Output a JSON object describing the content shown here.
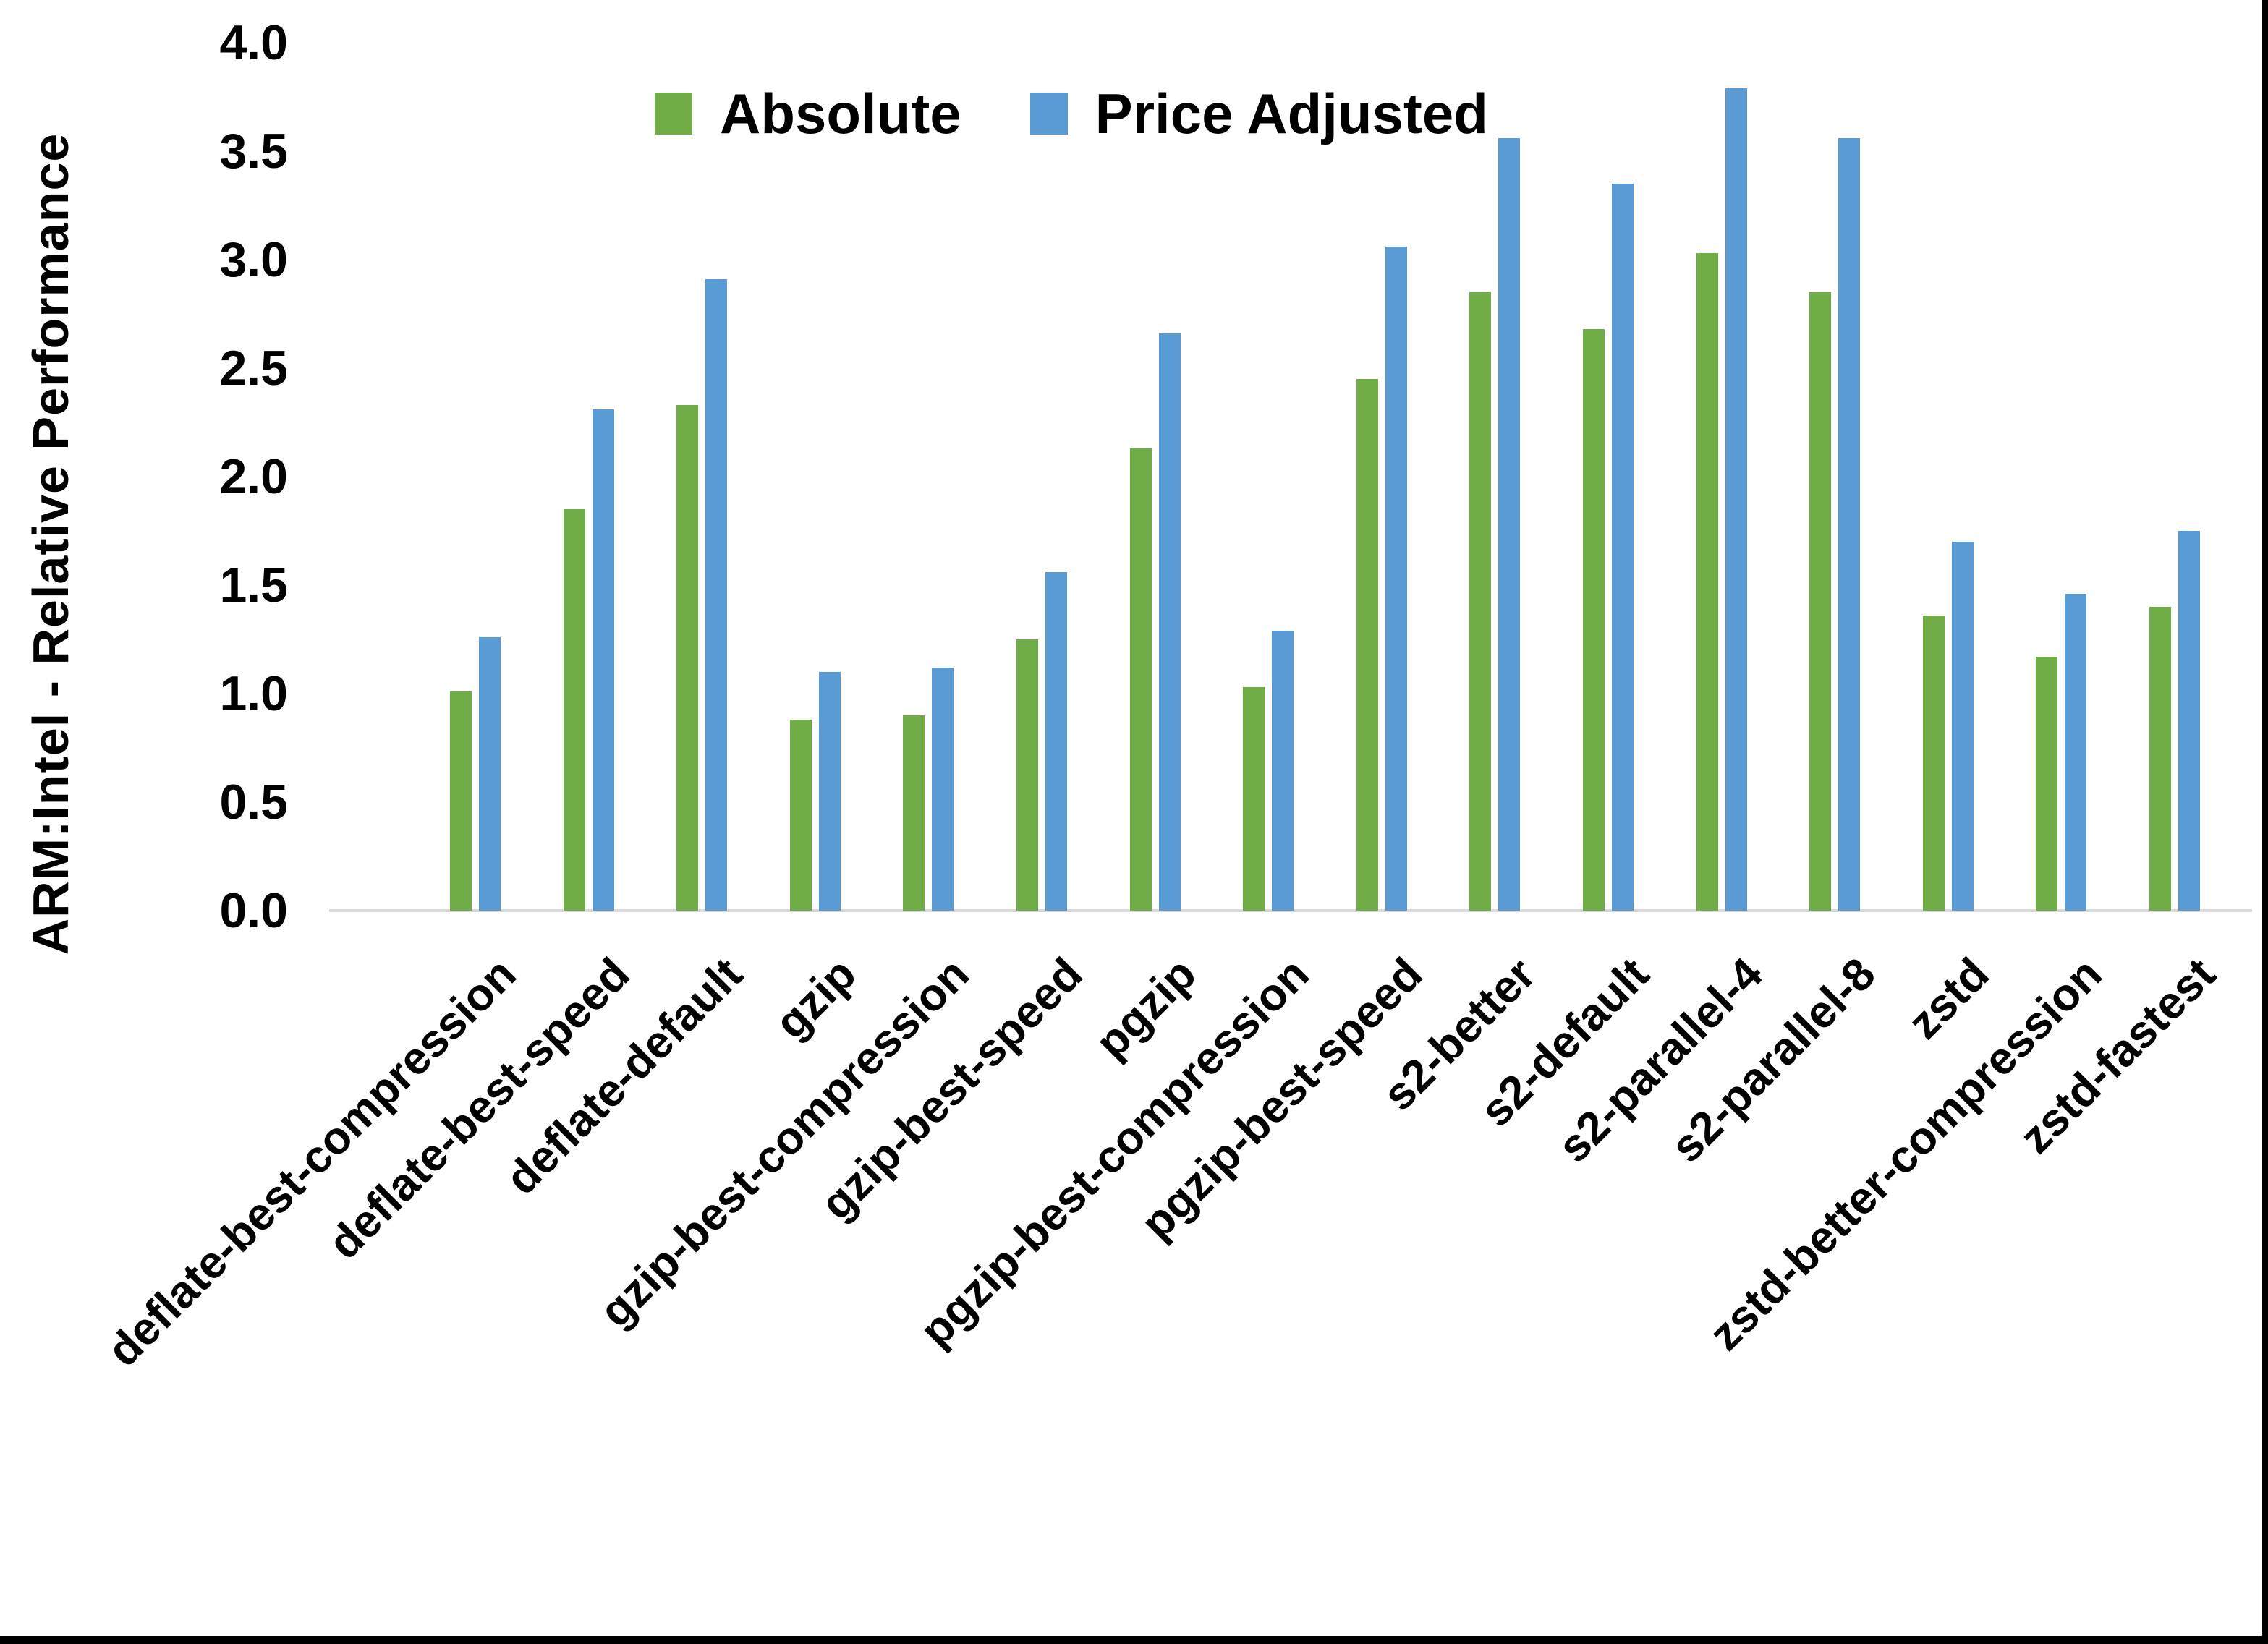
{
  "chart_data": {
    "type": "bar",
    "title": "",
    "ylabel": "ARM:Intel - Relative Performance",
    "xlabel": "",
    "categories": [
      "deflate-best-compression",
      "deflate-best-speed",
      "deflate-default",
      "gzip",
      "gzip-best-compression",
      "gzip-best-speed",
      "pgzip",
      "pgzip-best-compression",
      "pgzip-best-speed",
      "s2-better",
      "s2-default",
      "s2-parallel-4",
      "s2-parallel-8",
      "zstd",
      "zstd-better-compression",
      "zstd-fastest"
    ],
    "series": [
      {
        "name": "Absolute",
        "color": "#70AD47",
        "values": [
          1.01,
          1.85,
          2.33,
          0.88,
          0.9,
          1.25,
          2.13,
          1.03,
          2.45,
          2.85,
          2.68,
          3.03,
          2.85,
          1.36,
          1.17,
          1.4
        ]
      },
      {
        "name": "Price Adjusted",
        "color": "#5B9BD5",
        "values": [
          1.26,
          2.31,
          2.91,
          1.1,
          1.12,
          1.56,
          2.66,
          1.29,
          3.06,
          3.56,
          3.35,
          3.79,
          3.56,
          1.7,
          1.46,
          1.75
        ]
      }
    ],
    "ylim": [
      0.0,
      4.0
    ],
    "ytick_step": 0.5,
    "ytick_labels": [
      "0.0",
      "0.5",
      "1.0",
      "1.5",
      "2.0",
      "2.5",
      "3.0",
      "3.5",
      "4.0"
    ],
    "legend_position": "top-center",
    "grid": false,
    "axis_line_color": "#D9D9D9",
    "background": "#FFFFFF",
    "border_color": "#000000"
  }
}
